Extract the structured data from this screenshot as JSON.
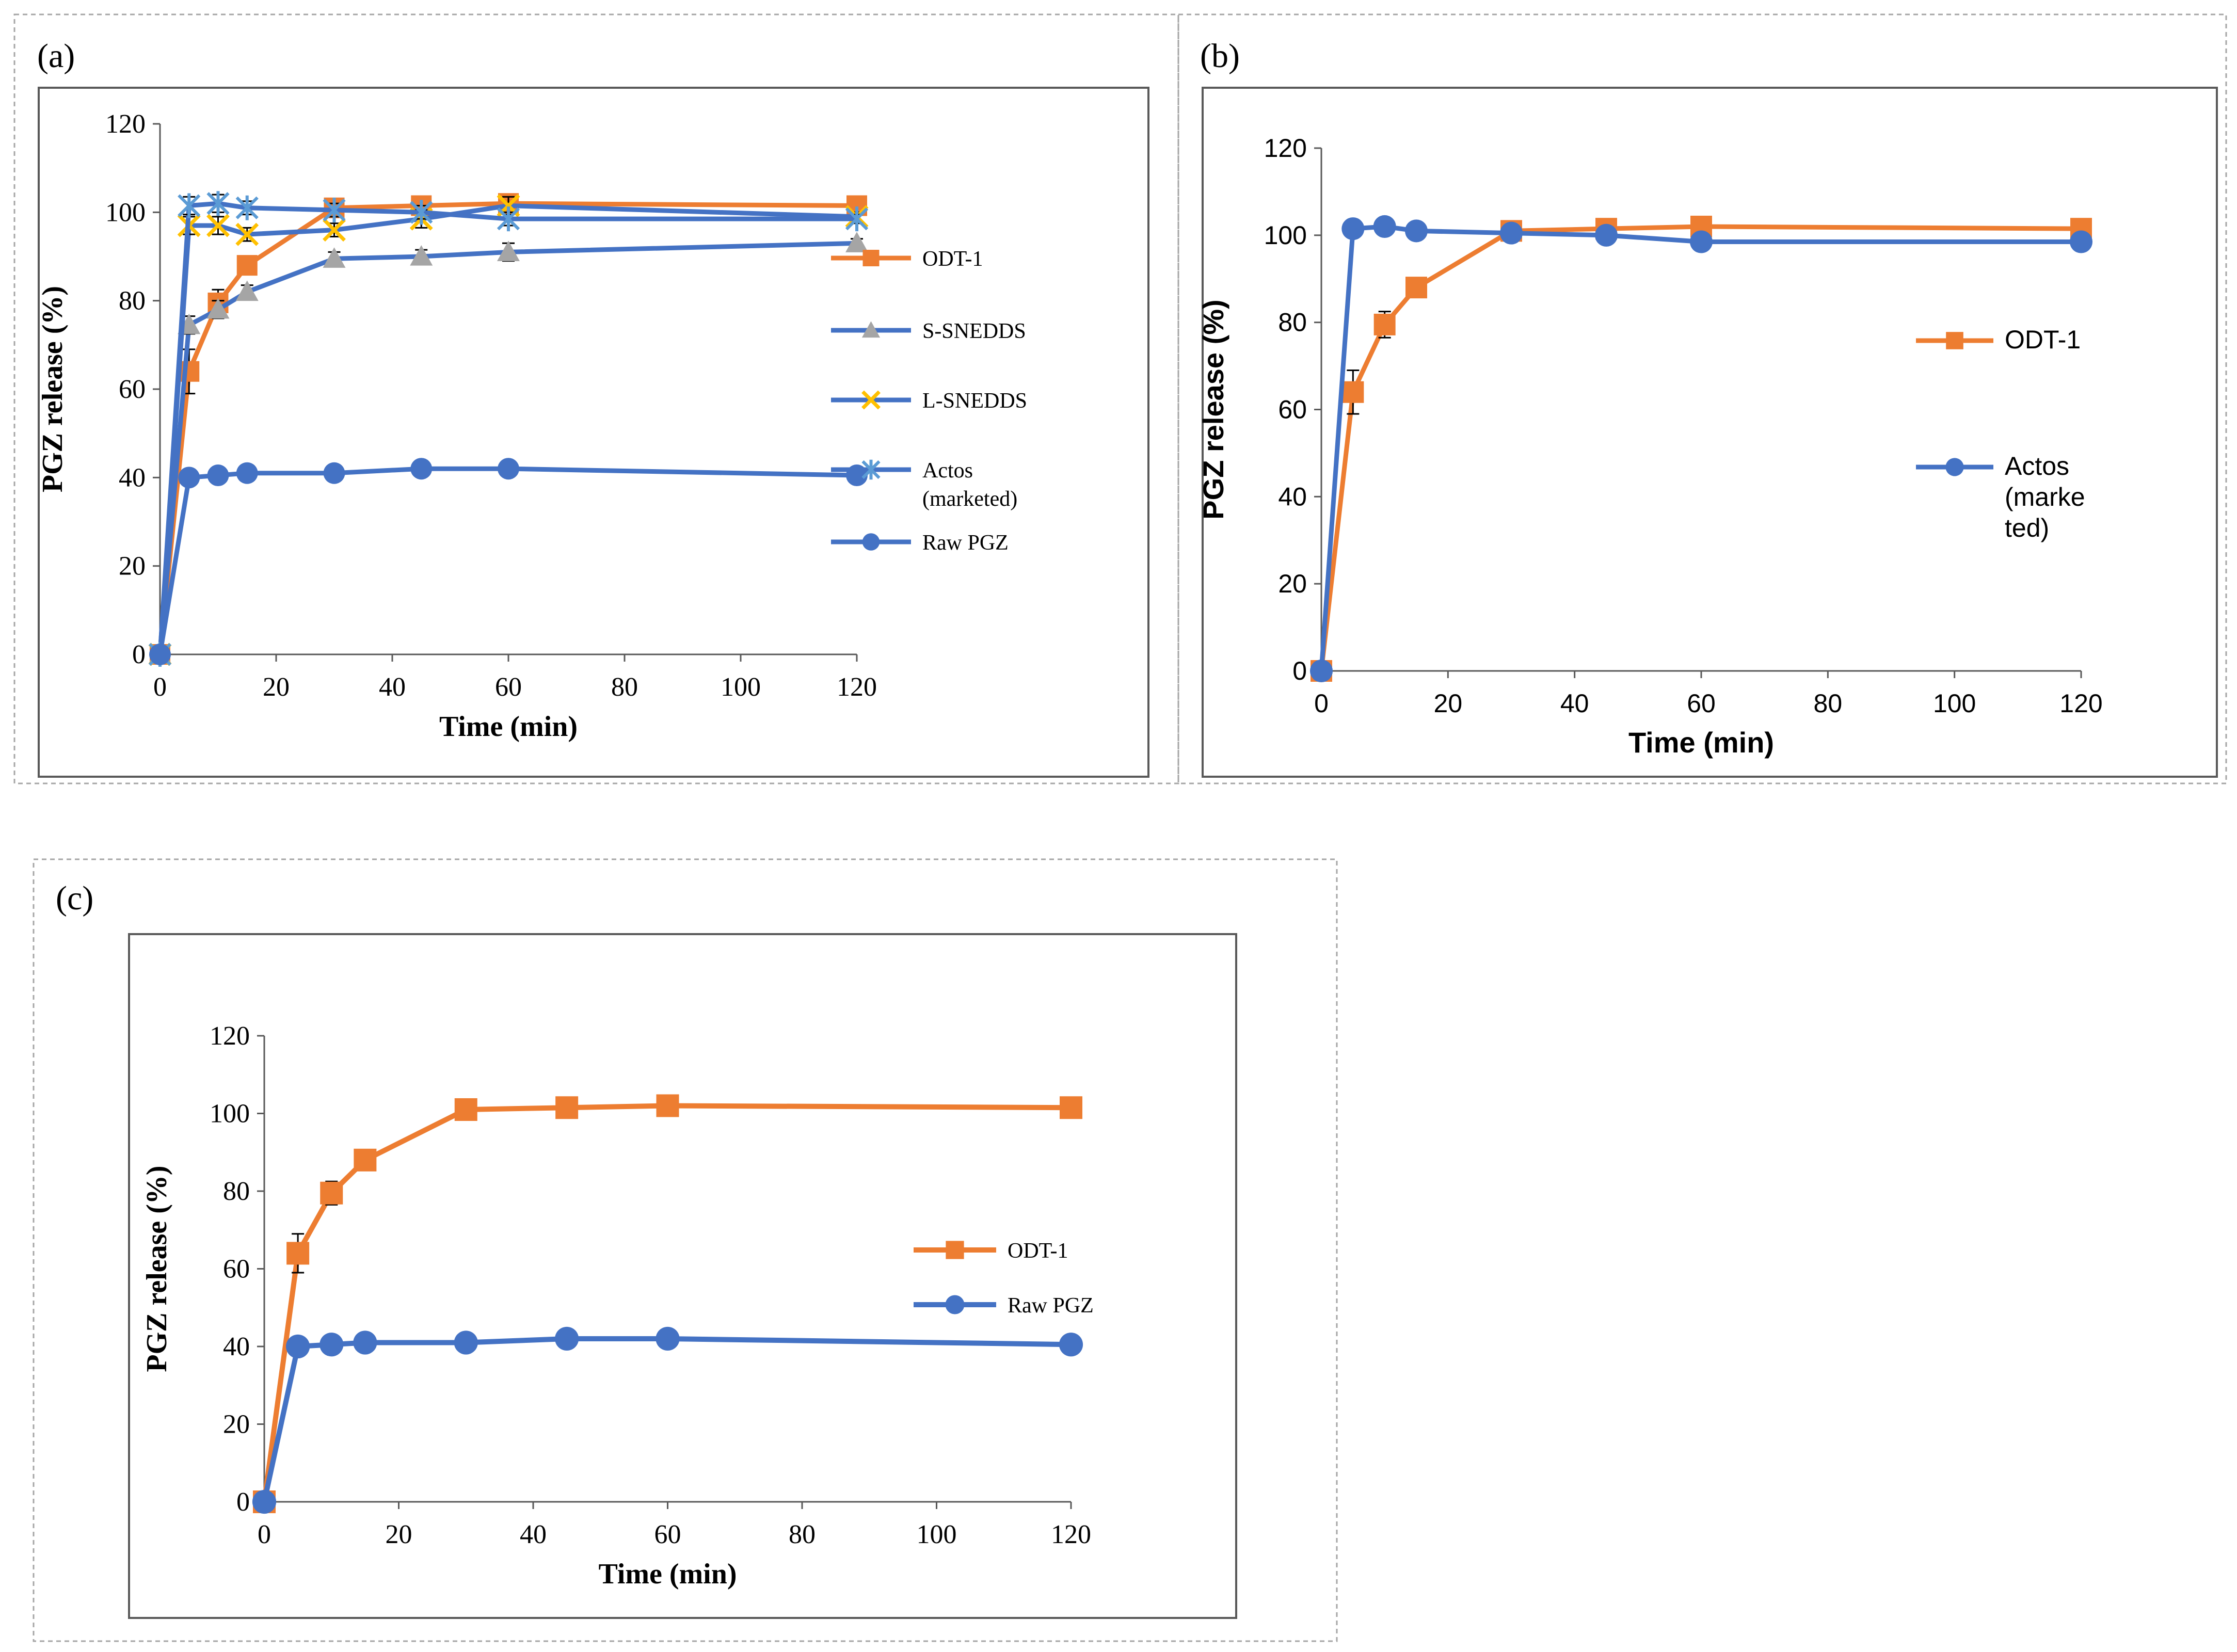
{
  "figure": {
    "panel_labels": [
      "(a)",
      "(b)",
      "(c)"
    ]
  },
  "colors": {
    "orange": "#ED7D31",
    "blue": "#4472C4",
    "gray": "#A5A5A5",
    "gold": "#FFC000",
    "lightblue": "#5B9BD5"
  },
  "chart_data": [
    {
      "panel": "(a)",
      "type": "line",
      "title": "",
      "xlabel": "Time (min)",
      "ylabel": "PGZ release (%)",
      "xlim": [
        0,
        120
      ],
      "ylim": [
        0,
        120
      ],
      "xticks": [
        "0",
        "20",
        "40",
        "60",
        "80",
        "100",
        "120"
      ],
      "yticks": [
        "0",
        "20",
        "40",
        "60",
        "80",
        "100",
        "120"
      ],
      "x": [
        0,
        5,
        10,
        15,
        30,
        45,
        60,
        120
      ],
      "legend_position": "right",
      "series": [
        {
          "name": "ODT-1",
          "color": "#ED7D31",
          "marker": "square",
          "values": [
            0,
            64,
            79.5,
            88,
            101,
            101.5,
            102,
            101.5
          ],
          "errors": [
            0,
            5,
            3,
            1,
            1,
            1,
            1,
            1
          ]
        },
        {
          "name": "S-SNEDDS",
          "color": "#4472C4",
          "marker_color": "#A5A5A5",
          "marker": "triangle",
          "values": [
            0,
            74.5,
            78,
            82,
            89.5,
            90,
            91,
            93
          ],
          "errors": [
            0,
            2,
            2,
            1.5,
            1.5,
            1.5,
            2,
            1
          ]
        },
        {
          "name": "L-SNEDDS",
          "color": "#4472C4",
          "marker_color": "#FFC000",
          "marker": "x",
          "values": [
            0,
            97,
            97,
            95,
            96,
            98.5,
            101.5,
            99
          ],
          "errors": [
            0,
            2,
            2,
            1.5,
            1.5,
            2,
            2,
            1
          ]
        },
        {
          "name": "Actos\n(marketed)",
          "color": "#4472C4",
          "marker_color": "#5B9BD5",
          "marker": "star",
          "values": [
            0,
            101.5,
            102,
            101,
            100.5,
            100,
            98.5,
            98.5
          ],
          "errors": [
            0,
            2,
            2,
            1.5,
            1.5,
            1.5,
            1.5,
            1
          ]
        },
        {
          "name": "Raw PGZ",
          "color": "#4472C4",
          "marker": "circle",
          "values": [
            0,
            40,
            40.5,
            41,
            41,
            42,
            42,
            40.5
          ],
          "errors": [
            0,
            1,
            1,
            1,
            1,
            1,
            1,
            1
          ]
        }
      ]
    },
    {
      "panel": "(b)",
      "type": "line",
      "title": "",
      "xlabel": "Time (min)",
      "ylabel": "PGZ release (%)",
      "xlim": [
        0,
        120
      ],
      "ylim": [
        0,
        120
      ],
      "xticks": [
        "0",
        "20",
        "40",
        "60",
        "80",
        "100",
        "120"
      ],
      "yticks": [
        "0",
        "20",
        "40",
        "60",
        "80",
        "100",
        "120"
      ],
      "x": [
        0,
        5,
        10,
        15,
        30,
        45,
        60,
        120
      ],
      "legend_position": "right",
      "series": [
        {
          "name": "ODT-1",
          "color": "#ED7D31",
          "marker": "square",
          "values": [
            0,
            64,
            79.5,
            88,
            101,
            101.5,
            102,
            101.5
          ],
          "errors": [
            0,
            5,
            3,
            1,
            1,
            1,
            1,
            1
          ]
        },
        {
          "name": "Actos\n(marke\nted)",
          "color": "#4472C4",
          "marker": "circle",
          "values": [
            0,
            101.5,
            102,
            101,
            100.5,
            100,
            98.5,
            98.5
          ],
          "errors": [
            0,
            1,
            1,
            1,
            1,
            1,
            1,
            1
          ]
        }
      ]
    },
    {
      "panel": "(c)",
      "type": "line",
      "title": "",
      "xlabel": "Time (min)",
      "ylabel": "PGZ release (%)",
      "xlim": [
        0,
        120
      ],
      "ylim": [
        0,
        120
      ],
      "xticks": [
        "0",
        "20",
        "40",
        "60",
        "80",
        "100",
        "120"
      ],
      "yticks": [
        "0",
        "20",
        "40",
        "60",
        "80",
        "100",
        "120"
      ],
      "x": [
        0,
        5,
        10,
        15,
        30,
        45,
        60,
        120
      ],
      "legend_position": "right",
      "series": [
        {
          "name": "ODT-1",
          "color": "#ED7D31",
          "marker": "square",
          "values": [
            0,
            64,
            79.5,
            88,
            101,
            101.5,
            102,
            101.5
          ],
          "errors": [
            0,
            5,
            3,
            1,
            1,
            1,
            1,
            1
          ]
        },
        {
          "name": "Raw PGZ",
          "color": "#4472C4",
          "marker": "circle",
          "values": [
            0,
            40,
            40.5,
            41,
            41,
            42,
            42,
            40.5
          ],
          "errors": [
            0,
            1,
            1,
            1,
            1,
            1,
            1,
            1
          ]
        }
      ]
    }
  ]
}
